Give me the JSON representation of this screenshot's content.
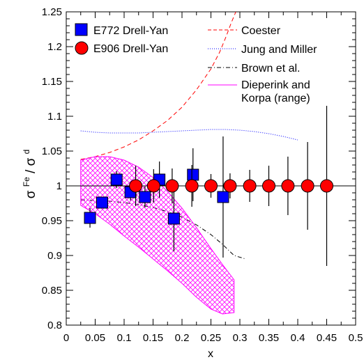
{
  "chart_data": {
    "type": "scatter",
    "xlabel": "x",
    "ylabel": "σFe/σd",
    "ylabel_parts": {
      "sigma": "σ",
      "num_sup": "Fe",
      "slash": "/",
      "den_sup": "d"
    },
    "xlim": [
      0,
      0.5
    ],
    "ylim": [
      0.8,
      1.25
    ],
    "x_ticks": [
      0,
      0.05,
      0.1,
      0.15,
      0.2,
      0.25,
      0.3,
      0.35,
      0.4,
      0.45,
      0.5
    ],
    "x_tick_labels": [
      "0",
      "0.05",
      "0.1",
      "0.15",
      "0.2",
      "0.25",
      "0.3",
      "0.35",
      "0.4",
      "0.45",
      "0.5"
    ],
    "y_ticks": [
      0.8,
      0.85,
      0.9,
      0.95,
      1.0,
      1.05,
      1.1,
      1.15,
      1.2,
      1.25
    ],
    "y_tick_labels": [
      "0.8",
      "0.85",
      "0.9",
      "0.95",
      "1",
      "1.05",
      "1.1",
      "1.15",
      "1.2",
      "1.25"
    ],
    "reference_line_y": 1.0,
    "series": [
      {
        "name": "E772 Drell-Yan",
        "kind": "points",
        "marker": "square",
        "color": "#0000ff",
        "points": [
          {
            "x": 0.041,
            "y": 0.954,
            "err": 0.014
          },
          {
            "x": 0.062,
            "y": 0.976,
            "err": 0.007
          },
          {
            "x": 0.087,
            "y": 1.009,
            "err": 0.012
          },
          {
            "x": 0.111,
            "y": 0.991,
            "err": 0.012
          },
          {
            "x": 0.136,
            "y": 0.984,
            "err": 0.015
          },
          {
            "x": 0.161,
            "y": 1.009,
            "err": 0.026
          },
          {
            "x": 0.186,
            "y": 0.953,
            "err": 0.047
          },
          {
            "x": 0.219,
            "y": 1.016,
            "err": 0.038
          },
          {
            "x": 0.271,
            "y": 0.984,
            "err": 0.087
          }
        ]
      },
      {
        "name": "E906 Drell-Yan",
        "kind": "points",
        "marker": "circle",
        "color": "#ff0000",
        "points": [
          {
            "x": 0.12,
            "y": 1.0,
            "err": 0.029
          },
          {
            "x": 0.151,
            "y": 1.0,
            "err": 0.024
          },
          {
            "x": 0.183,
            "y": 1.0,
            "err": 0.025
          },
          {
            "x": 0.217,
            "y": 1.0,
            "err": 0.03
          },
          {
            "x": 0.25,
            "y": 1.0,
            "err": 0.017
          },
          {
            "x": 0.283,
            "y": 1.0,
            "err": 0.018
          },
          {
            "x": 0.317,
            "y": 1.0,
            "err": 0.023
          },
          {
            "x": 0.35,
            "y": 1.0,
            "err": 0.029
          },
          {
            "x": 0.383,
            "y": 1.0,
            "err": 0.042
          },
          {
            "x": 0.417,
            "y": 1.0,
            "err": 0.063
          },
          {
            "x": 0.45,
            "y": 1.0,
            "err": 0.115
          }
        ]
      },
      {
        "name": "Coester",
        "kind": "curve",
        "style": "dashed",
        "color": "#ff0000",
        "x": [
          0.025,
          0.05,
          0.075,
          0.1,
          0.125,
          0.15,
          0.175,
          0.2,
          0.225,
          0.25,
          0.265,
          0.275,
          0.285,
          0.293
        ],
        "y": [
          1.038,
          1.042,
          1.048,
          1.056,
          1.066,
          1.079,
          1.094,
          1.113,
          1.138,
          1.168,
          1.192,
          1.212,
          1.234,
          1.25
        ]
      },
      {
        "name": "Jung and Miller",
        "kind": "curve",
        "style": "dotted",
        "color": "#0000ff",
        "x": [
          0.025,
          0.05,
          0.075,
          0.1,
          0.125,
          0.15,
          0.175,
          0.2,
          0.225,
          0.25,
          0.275,
          0.3,
          0.325,
          0.35,
          0.375,
          0.4
        ],
        "y": [
          1.079,
          1.077,
          1.076,
          1.076,
          1.076,
          1.077,
          1.078,
          1.079,
          1.08,
          1.081,
          1.081,
          1.08,
          1.078,
          1.075,
          1.071,
          1.066
        ]
      },
      {
        "name": "Brown et al.",
        "kind": "curve",
        "style": "dashdot",
        "color": "#000000",
        "x": [
          0.025,
          0.05,
          0.075,
          0.1,
          0.125,
          0.15,
          0.175,
          0.2,
          0.225,
          0.25,
          0.27,
          0.29,
          0.31
        ],
        "y": [
          0.98,
          0.979,
          0.978,
          0.976,
          0.973,
          0.969,
          0.963,
          0.955,
          0.944,
          0.93,
          0.916,
          0.9,
          0.895
        ]
      },
      {
        "name": "Dieperink and Korpa (range)",
        "legend_lines": [
          "Dieperink and",
          "Korpa (range)"
        ],
        "kind": "band",
        "style": "crosshatch",
        "color": "#ff00ff",
        "x": [
          0.025,
          0.05,
          0.075,
          0.1,
          0.125,
          0.15,
          0.175,
          0.2,
          0.225,
          0.25,
          0.27,
          0.29
        ],
        "y_upper": [
          1.037,
          1.042,
          1.042,
          1.037,
          1.027,
          1.012,
          0.992,
          0.968,
          0.94,
          0.91,
          0.887,
          0.865
        ],
        "y_lower": [
          0.972,
          0.96,
          0.945,
          0.928,
          0.912,
          0.895,
          0.878,
          0.86,
          0.84,
          0.823,
          0.816,
          0.818
        ]
      }
    ],
    "legend": {
      "left": [
        "E772 Drell-Yan",
        "E906 Drell-Yan"
      ],
      "right": [
        "Coester",
        "Jung and Miller",
        "Brown et al.",
        "Dieperink and",
        "Korpa (range)"
      ]
    },
    "grid": false
  }
}
